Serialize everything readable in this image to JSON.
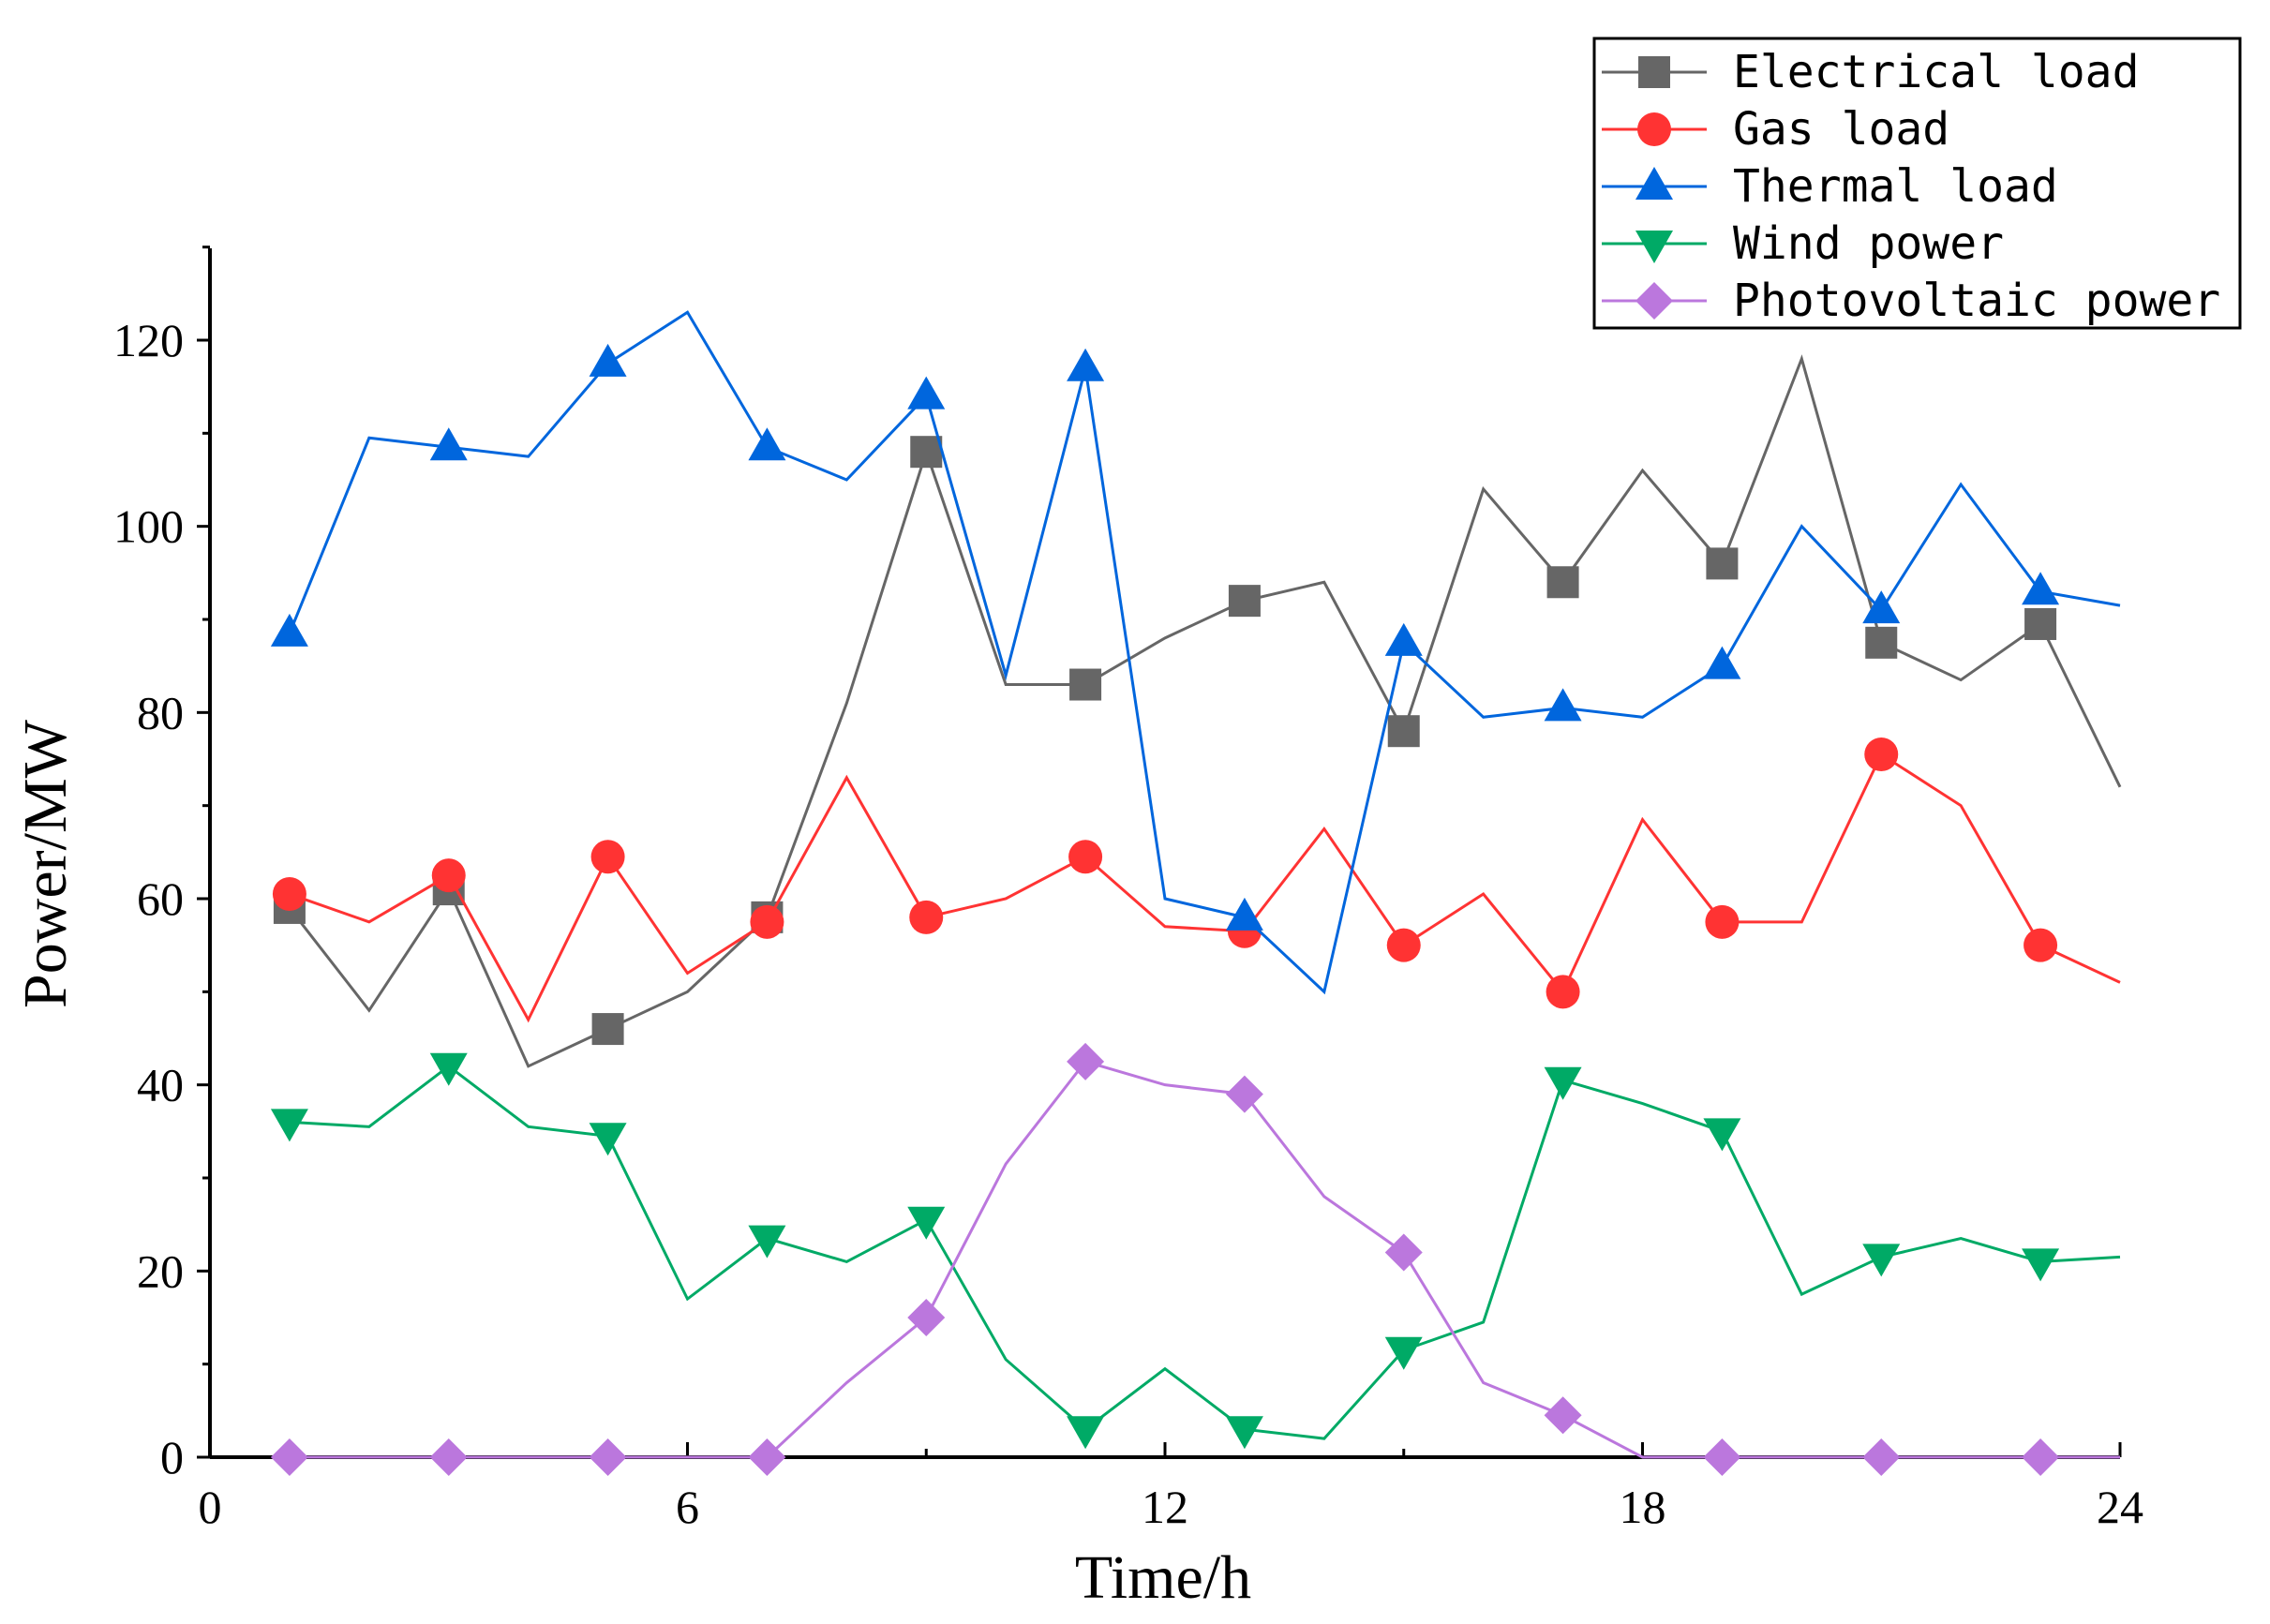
{
  "chart_data": {
    "type": "line",
    "title": "",
    "xlabel": "Time/h",
    "ylabel": "Power/MW",
    "xlim": [
      0,
      24
    ],
    "ylim": [
      0,
      130
    ],
    "xticks": [
      0,
      6,
      12,
      18,
      24
    ],
    "yticks": [
      0,
      20,
      40,
      60,
      80,
      100,
      120
    ],
    "x": [
      1,
      2,
      3,
      4,
      5,
      6,
      7,
      8,
      9,
      10,
      11,
      12,
      13,
      14,
      15,
      16,
      17,
      18,
      19,
      20,
      21,
      22,
      23,
      24
    ],
    "legend_position": "top-right",
    "series": [
      {
        "name": "Electrical load",
        "color": "#666666",
        "marker": "square",
        "values": [
          59,
          48,
          61,
          42,
          46,
          50,
          58,
          81,
          108,
          83,
          83,
          88,
          92,
          94,
          78,
          104,
          94,
          106,
          96,
          118,
          87.5,
          83.5,
          89.5,
          72
        ]
      },
      {
        "name": "Gas load",
        "color": "#ff3333",
        "marker": "circle",
        "values": [
          60.5,
          57.5,
          62.5,
          47,
          64.5,
          52,
          57.5,
          73,
          58,
          60,
          64.5,
          57,
          56.5,
          67.5,
          55,
          60.5,
          50,
          68.5,
          57.5,
          57.5,
          75.5,
          70,
          55,
          51
        ]
      },
      {
        "name": "Thermal load",
        "color": "#0066dd",
        "marker": "triangle-up",
        "values": [
          88.5,
          109.5,
          108.5,
          107.5,
          117.5,
          123,
          108.5,
          105,
          114,
          84,
          117,
          60,
          58,
          50,
          87.5,
          79.5,
          80.5,
          79.5,
          85,
          100,
          91,
          104.5,
          93,
          91.5
        ]
      },
      {
        "name": "Wind power",
        "color": "#00aa66",
        "marker": "triangle-down",
        "values": [
          36,
          35.5,
          42,
          35.5,
          34.5,
          17,
          23.5,
          21,
          25.5,
          10.5,
          3,
          9.5,
          3,
          2,
          11.5,
          14.5,
          40.5,
          38,
          35,
          17.5,
          21.5,
          23.5,
          21,
          21.5
        ]
      },
      {
        "name": "Photovoltaic power",
        "color": "#bb77dd",
        "marker": "diamond",
        "values": [
          0,
          0,
          0,
          0,
          0,
          0,
          0,
          8,
          15,
          31.5,
          42.5,
          40,
          39,
          28,
          22,
          8,
          4.5,
          0,
          0,
          0,
          0,
          0,
          0,
          0
        ]
      }
    ]
  }
}
